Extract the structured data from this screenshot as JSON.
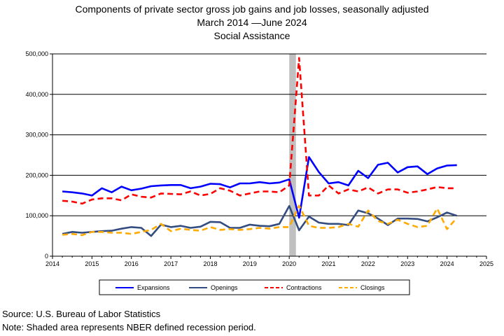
{
  "chart_data": {
    "type": "line",
    "title": "Components of private sector gross job gains and job losses, seasonally adjusted",
    "subtitle_range": "March 2014 —June 2024",
    "subtitle_category": "Social Assistance",
    "xlabel": "",
    "ylabel": "",
    "xlim": [
      2014,
      2025
    ],
    "ylim": [
      0,
      500000
    ],
    "x_ticks": [
      "2014",
      "2015",
      "2016",
      "2017",
      "2018",
      "2019",
      "2020",
      "2021",
      "2022",
      "2023",
      "2024",
      "2025"
    ],
    "y_ticks": [
      "0",
      "100,000",
      "200,000",
      "300,000",
      "400,000",
      "500,000"
    ],
    "grid": "horizontal",
    "legend_position": "bottom",
    "recession_band": [
      2020.0,
      2020.17
    ],
    "x": [
      2014.25,
      2014.5,
      2014.75,
      2015.0,
      2015.25,
      2015.5,
      2015.75,
      2016.0,
      2016.25,
      2016.5,
      2016.75,
      2017.0,
      2017.25,
      2017.5,
      2017.75,
      2018.0,
      2018.25,
      2018.5,
      2018.75,
      2019.0,
      2019.25,
      2019.5,
      2019.75,
      2020.0,
      2020.25,
      2020.5,
      2020.75,
      2021.0,
      2021.25,
      2021.5,
      2021.75,
      2022.0,
      2022.25,
      2022.5,
      2022.75,
      2023.0,
      2023.25,
      2023.5,
      2023.75,
      2024.0,
      2024.25
    ],
    "series": [
      {
        "name": "Expansions",
        "color": "#0000ff",
        "style": "solid",
        "values": [
          160000,
          158000,
          155000,
          150000,
          168000,
          158000,
          172000,
          163000,
          167000,
          173000,
          175000,
          176000,
          176000,
          168000,
          172000,
          179000,
          178000,
          170000,
          180000,
          180000,
          183000,
          180000,
          182000,
          190000,
          95000,
          245000,
          208000,
          180000,
          183000,
          175000,
          211000,
          193000,
          226000,
          231000,
          207000,
          220000,
          222000,
          203000,
          217000,
          224000,
          225000
        ]
      },
      {
        "name": "Openings",
        "color": "#334d80",
        "style": "solid",
        "values": [
          55000,
          60000,
          58000,
          60000,
          62000,
          63000,
          68000,
          72000,
          70000,
          50000,
          78000,
          72000,
          75000,
          70000,
          73000,
          85000,
          84000,
          70000,
          70000,
          78000,
          75000,
          74000,
          80000,
          124000,
          64000,
          98000,
          83000,
          80000,
          80000,
          77000,
          113000,
          106000,
          93000,
          77000,
          93000,
          93000,
          92000,
          86000,
          96000,
          108000,
          100000
        ]
      },
      {
        "name": "Contractions",
        "color": "#ff0000",
        "style": "dashed",
        "values": [
          137000,
          135000,
          130000,
          140000,
          143000,
          143000,
          138000,
          153000,
          147000,
          145000,
          155000,
          154000,
          153000,
          160000,
          150000,
          154000,
          168000,
          162000,
          150000,
          155000,
          160000,
          160000,
          158000,
          175000,
          490000,
          150000,
          150000,
          175000,
          155000,
          165000,
          160000,
          170000,
          155000,
          165000,
          165000,
          157000,
          160000,
          165000,
          171000,
          168000,
          168000
        ]
      },
      {
        "name": "Closings",
        "color": "#ffaa00",
        "style": "dashed",
        "values": [
          53000,
          55000,
          52000,
          60000,
          60000,
          58000,
          58000,
          55000,
          60000,
          65000,
          80000,
          62000,
          68000,
          65000,
          63000,
          72000,
          65000,
          67000,
          65000,
          67000,
          70000,
          68000,
          72000,
          72000,
          125000,
          75000,
          70000,
          70000,
          72000,
          80000,
          73000,
          113000,
          87000,
          80000,
          90000,
          80000,
          72000,
          75000,
          118000,
          67000,
          95000
        ]
      }
    ]
  },
  "footer": {
    "source": "Source: U.S. Bureau of Labor Statistics",
    "note": "Note: Shaded area represents NBER defined recession period."
  }
}
